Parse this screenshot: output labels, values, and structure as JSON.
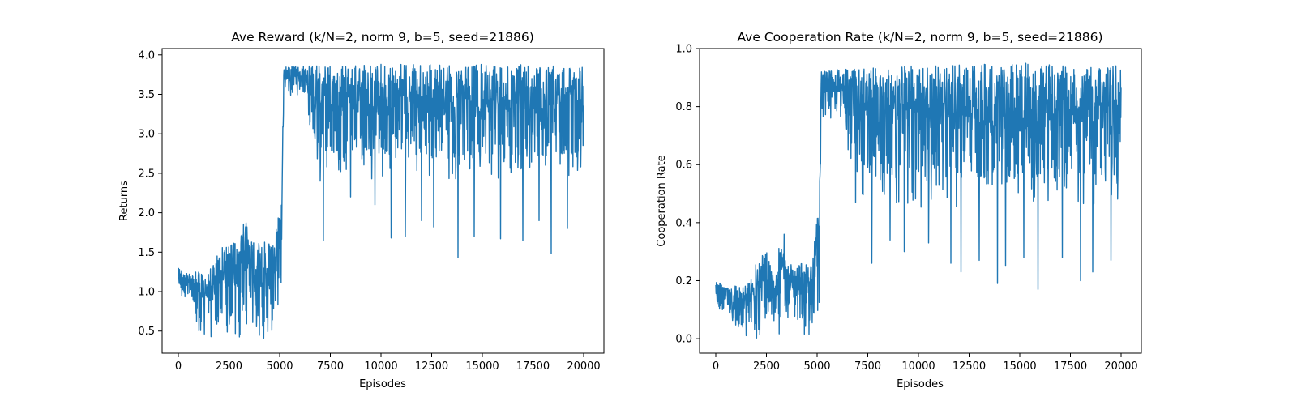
{
  "chart_data": [
    {
      "type": "line",
      "title": "Ave Reward (k/N=2, norm 9, b=5, seed=21886)",
      "xlabel": "Episodes",
      "ylabel": "Returns",
      "xlim": [
        -800,
        21000
      ],
      "ylim": [
        0.22,
        4.08
      ],
      "xticks": [
        0,
        2500,
        5000,
        7500,
        10000,
        12500,
        15000,
        17500,
        20000
      ],
      "xtick_labels": [
        "0",
        "2500",
        "5000",
        "7500",
        "10000",
        "12500",
        "15000",
        "17500",
        "20000"
      ],
      "yticks": [
        0.5,
        1.0,
        1.5,
        2.0,
        2.5,
        3.0,
        3.5,
        4.0
      ],
      "ytick_labels": [
        "0.5",
        "1.0",
        "1.5",
        "2.0",
        "2.5",
        "3.0",
        "3.5",
        "4.0"
      ],
      "grid": false,
      "color": "#1f77b4",
      "series": [
        {
          "name": "returns",
          "envelope": [
            {
              "x": 0,
              "low": 0.85,
              "high": 1.3
            },
            {
              "x": 800,
              "low": 0.85,
              "high": 1.2
            },
            {
              "x": 850,
              "low": 0.42,
              "high": 1.25
            },
            {
              "x": 1500,
              "low": 0.42,
              "high": 1.25
            },
            {
              "x": 2000,
              "low": 0.42,
              "high": 1.5
            },
            {
              "x": 2500,
              "low": 0.42,
              "high": 1.7
            },
            {
              "x": 3000,
              "low": 0.42,
              "high": 1.55
            },
            {
              "x": 3200,
              "low": 0.45,
              "high": 1.95
            },
            {
              "x": 3400,
              "low": 0.55,
              "high": 1.9
            },
            {
              "x": 3500,
              "low": 0.4,
              "high": 1.65
            },
            {
              "x": 4000,
              "low": 0.4,
              "high": 1.65
            },
            {
              "x": 4700,
              "low": 0.4,
              "high": 1.6
            },
            {
              "x": 4900,
              "low": 0.7,
              "high": 1.9
            },
            {
              "x": 5100,
              "low": 0.65,
              "high": 2.3
            },
            {
              "x": 5200,
              "low": 3.5,
              "high": 3.85
            },
            {
              "x": 6200,
              "low": 3.45,
              "high": 3.86
            },
            {
              "x": 6500,
              "low": 2.9,
              "high": 3.86
            },
            {
              "x": 7000,
              "low": 2.5,
              "high": 3.87
            },
            {
              "x": 10000,
              "low": 2.4,
              "high": 3.88
            },
            {
              "x": 15000,
              "low": 2.4,
              "high": 3.88
            },
            {
              "x": 20000,
              "low": 2.45,
              "high": 3.87
            }
          ],
          "dips": [
            {
              "x": 7000,
              "y": 2.4
            },
            {
              "x": 7150,
              "y": 1.65
            },
            {
              "x": 8500,
              "y": 2.2
            },
            {
              "x": 9700,
              "y": 2.1
            },
            {
              "x": 10500,
              "y": 1.68
            },
            {
              "x": 11200,
              "y": 1.7
            },
            {
              "x": 12000,
              "y": 1.9
            },
            {
              "x": 12600,
              "y": 1.82
            },
            {
              "x": 13800,
              "y": 1.43
            },
            {
              "x": 14600,
              "y": 1.7
            },
            {
              "x": 15900,
              "y": 1.67
            },
            {
              "x": 17000,
              "y": 1.65
            },
            {
              "x": 17800,
              "y": 1.9
            },
            {
              "x": 18400,
              "y": 1.48
            },
            {
              "x": 19200,
              "y": 1.8
            }
          ]
        }
      ]
    },
    {
      "type": "line",
      "title": "Ave Cooperation Rate (k/N=2, norm 9, b=5, seed=21886)",
      "xlabel": "Episodes",
      "ylabel": "Cooperation Rate",
      "xlim": [
        -800,
        21000
      ],
      "ylim": [
        -0.05,
        1.0
      ],
      "xticks": [
        0,
        2500,
        5000,
        7500,
        10000,
        12500,
        15000,
        17500,
        20000
      ],
      "xtick_labels": [
        "0",
        "2500",
        "5000",
        "7500",
        "10000",
        "12500",
        "15000",
        "17500",
        "20000"
      ],
      "yticks": [
        0.0,
        0.2,
        0.4,
        0.6,
        0.8,
        1.0
      ],
      "ytick_labels": [
        "0.0",
        "0.2",
        "0.4",
        "0.6",
        "0.8",
        "1.0"
      ],
      "grid": false,
      "color": "#1f77b4",
      "series": [
        {
          "name": "cooperation_rate",
          "envelope": [
            {
              "x": 0,
              "low": 0.08,
              "high": 0.2
            },
            {
              "x": 800,
              "low": 0.07,
              "high": 0.18
            },
            {
              "x": 850,
              "low": 0.0,
              "high": 0.2
            },
            {
              "x": 1500,
              "low": 0.0,
              "high": 0.18
            },
            {
              "x": 2000,
              "low": 0.0,
              "high": 0.27
            },
            {
              "x": 2500,
              "low": 0.0,
              "high": 0.3
            },
            {
              "x": 3000,
              "low": 0.01,
              "high": 0.22
            },
            {
              "x": 3200,
              "low": 0.02,
              "high": 0.38
            },
            {
              "x": 3400,
              "low": 0.05,
              "high": 0.38
            },
            {
              "x": 3500,
              "low": 0.01,
              "high": 0.26
            },
            {
              "x": 4000,
              "low": 0.01,
              "high": 0.26
            },
            {
              "x": 4700,
              "low": 0.01,
              "high": 0.26
            },
            {
              "x": 4900,
              "low": 0.03,
              "high": 0.35
            },
            {
              "x": 5100,
              "low": 0.03,
              "high": 0.48
            },
            {
              "x": 5200,
              "low": 0.76,
              "high": 0.92
            },
            {
              "x": 6200,
              "low": 0.75,
              "high": 0.93
            },
            {
              "x": 6500,
              "low": 0.62,
              "high": 0.93
            },
            {
              "x": 7000,
              "low": 0.5,
              "high": 0.94
            },
            {
              "x": 10000,
              "low": 0.45,
              "high": 0.94
            },
            {
              "x": 15000,
              "low": 0.45,
              "high": 0.95
            },
            {
              "x": 20000,
              "low": 0.46,
              "high": 0.94
            }
          ],
          "dips": [
            {
              "x": 6900,
              "y": 0.47
            },
            {
              "x": 7700,
              "y": 0.26
            },
            {
              "x": 8600,
              "y": 0.34
            },
            {
              "x": 9300,
              "y": 0.3
            },
            {
              "x": 10500,
              "y": 0.33
            },
            {
              "x": 11600,
              "y": 0.26
            },
            {
              "x": 12100,
              "y": 0.23
            },
            {
              "x": 13000,
              "y": 0.27
            },
            {
              "x": 13900,
              "y": 0.19
            },
            {
              "x": 14300,
              "y": 0.25
            },
            {
              "x": 15200,
              "y": 0.28
            },
            {
              "x": 15900,
              "y": 0.17
            },
            {
              "x": 17100,
              "y": 0.28
            },
            {
              "x": 18000,
              "y": 0.2
            },
            {
              "x": 18600,
              "y": 0.23
            },
            {
              "x": 19500,
              "y": 0.27
            }
          ]
        }
      ]
    }
  ]
}
